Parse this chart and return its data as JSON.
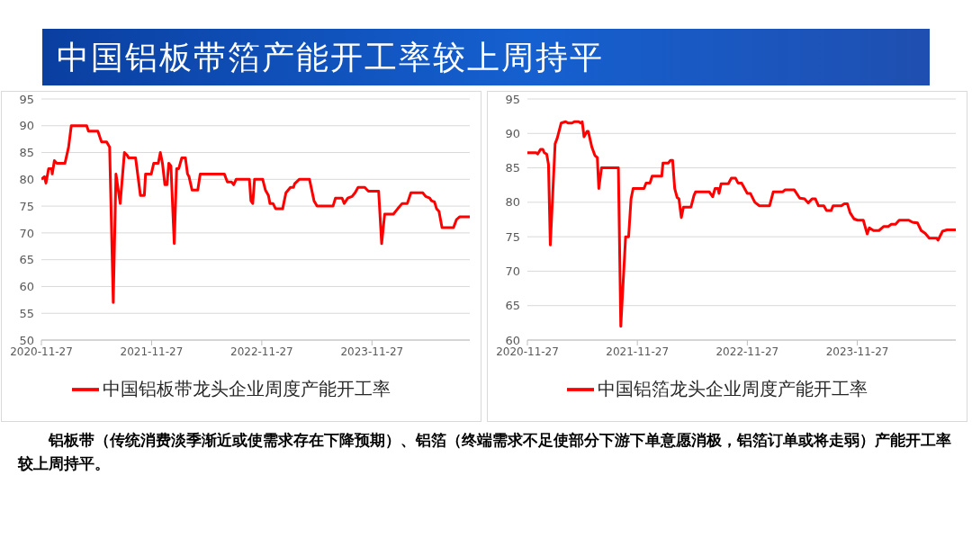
{
  "chart_data": [
    {
      "type": "line",
      "title": "中国铝板带箔产能开工率较上周持平",
      "x": [
        "2020-11-27",
        "2020-12-07",
        "2020-12-12",
        "2020-12-21",
        "2020-12-31",
        "2021-01-02",
        "2021-01-09",
        "2021-01-17",
        "2021-02-13",
        "2021-02-25",
        "2021-03-06",
        "2021-04-26",
        "2021-05-02",
        "2021-06-02",
        "2021-06-14",
        "2021-07-01",
        "2021-07-11",
        "2021-07-23",
        "2021-08-01",
        "2021-08-15",
        "2021-08-29",
        "2021-09-07",
        "2021-09-12",
        "2021-10-05",
        "2021-10-21",
        "2021-11-03",
        "2021-11-07",
        "2021-11-26",
        "2021-12-04",
        "2021-12-19",
        "2021-12-26",
        "2022-01-02",
        "2022-01-10",
        "2022-01-17",
        "2022-01-23",
        "2022-01-30",
        "2022-02-10",
        "2022-02-18",
        "2022-02-25",
        "2022-03-07",
        "2022-03-19",
        "2022-03-26",
        "2022-03-31",
        "2022-04-10",
        "2022-04-29",
        "2022-05-07",
        "2022-07-26",
        "2022-08-05",
        "2022-08-19",
        "2022-08-26",
        "2022-09-03",
        "2022-09-13",
        "2022-10-17",
        "2022-10-22",
        "2022-10-28",
        "2022-11-03",
        "2022-11-30",
        "2022-12-09",
        "2022-12-19",
        "2022-12-24",
        "2023-01-03",
        "2023-01-12",
        "2023-02-04",
        "2023-02-15",
        "2023-03-02",
        "2023-03-12",
        "2023-03-16",
        "2023-03-31",
        "2023-05-04",
        "2023-05-19",
        "2023-05-29",
        "2023-07-21",
        "2023-07-29",
        "2023-08-20",
        "2023-08-27",
        "2023-09-08",
        "2023-09-22",
        "2023-10-02",
        "2023-10-12",
        "2023-11-03",
        "2023-11-15",
        "2023-12-19",
        "2023-12-29",
        "2024-01-08",
        "2024-02-06",
        "2024-02-20",
        "2024-03-06",
        "2024-03-23",
        "2024-04-04",
        "2024-05-13",
        "2024-05-23",
        "2024-06-05",
        "2024-06-11",
        "2024-06-21",
        "2024-06-28",
        "2024-07-06",
        "2024-07-16",
        "2024-08-23",
        "2024-09-02",
        "2024-09-12",
        "2024-10-16"
      ],
      "series": [
        {
          "name": "中国铝板带龙头企业周度产能开工率",
          "color": "#ff0000",
          "values": [
            80,
            80.5,
            79.3,
            82,
            82,
            81,
            83.5,
            83,
            83,
            86,
            90,
            90,
            89,
            89,
            87,
            87,
            86,
            57,
            81,
            75.5,
            85,
            84.5,
            84,
            84,
            77,
            77,
            81,
            81,
            83,
            83,
            85,
            83,
            79,
            79,
            83,
            82.5,
            68,
            82,
            82,
            84,
            84,
            81,
            80.5,
            78,
            78,
            81,
            81,
            79.5,
            79.5,
            79,
            80,
            80,
            80,
            76,
            75.5,
            80,
            80,
            78,
            77,
            75.5,
            75.5,
            74.5,
            74.5,
            77.5,
            78.5,
            78.5,
            79.2,
            80,
            80,
            76,
            75,
            75,
            76.5,
            76.5,
            75.5,
            76.5,
            76.8,
            77.5,
            78.5,
            78.5,
            77.8,
            77.8,
            68,
            73.5,
            73.5,
            74.5,
            75.5,
            75.5,
            77.5,
            77.5,
            76.8,
            76.5,
            76,
            75.8,
            74.5,
            74,
            71,
            71,
            72.5,
            73,
            73
          ]
        }
      ],
      "xlim": [
        "2020-11-27",
        "2024-10-16"
      ],
      "xticks": [
        "2020-11-27",
        "2021-11-27",
        "2022-11-27",
        "2023-11-27"
      ],
      "ylim": [
        50,
        95
      ],
      "yticks": [
        50,
        55,
        60,
        65,
        70,
        75,
        80,
        85,
        90,
        95
      ],
      "grid": "y",
      "legend": "bottom",
      "marker": "none"
    },
    {
      "type": "line",
      "annotations": [
        "铝板带（传统消费淡季渐近或使需求存在下降预期）、铝箔（终端需求不足使部分下游下单意愿消极，铝箔订单或将走弱）产能开工率较上周持平。"
      ],
      "x": [
        "2020-11-27",
        "2020-12-26",
        "2020-12-31",
        "2021-01-10",
        "2021-01-17",
        "2021-01-22",
        "2021-01-30",
        "2021-02-05",
        "2021-02-11",
        "2021-02-20",
        "2021-02-27",
        "2021-03-06",
        "2021-03-19",
        "2021-04-03",
        "2021-04-12",
        "2021-04-24",
        "2021-05-02",
        "2021-05-16",
        "2021-05-23",
        "2021-05-28",
        "2021-06-03",
        "2021-06-13",
        "2021-06-17",
        "2021-06-29",
        "2021-07-09",
        "2021-07-17",
        "2021-07-22",
        "2021-07-31",
        "2021-09-25",
        "2021-10-03",
        "2021-10-19",
        "2021-10-29",
        "2021-11-06",
        "2021-11-13",
        "2021-12-19",
        "2021-12-26",
        "2022-01-08",
        "2022-01-15",
        "2022-02-16",
        "2022-02-20",
        "2022-03-10",
        "2022-03-17",
        "2022-03-24",
        "2022-03-31",
        "2022-04-08",
        "2022-04-14",
        "2022-04-22",
        "2022-04-29",
        "2022-05-24",
        "2022-06-03",
        "2022-06-08",
        "2022-07-24",
        "2022-08-04",
        "2022-08-12",
        "2022-08-22",
        "2022-08-25",
        "2022-09-01",
        "2022-09-25",
        "2022-10-05",
        "2022-10-19",
        "2022-10-27",
        "2022-11-08",
        "2022-11-27",
        "2022-12-07",
        "2022-12-22",
        "2023-01-06",
        "2023-02-09",
        "2023-02-21",
        "2023-03-24",
        "2023-04-01",
        "2023-05-02",
        "2023-05-20",
        "2023-06-05",
        "2023-06-17",
        "2023-06-30",
        "2023-07-11",
        "2023-07-21",
        "2023-08-08",
        "2023-08-17",
        "2023-09-01",
        "2023-09-08",
        "2023-10-05",
        "2023-10-15",
        "2023-10-25",
        "2023-11-03",
        "2023-11-16",
        "2023-11-28",
        "2023-12-17",
        "2023-12-24",
        "2023-12-30",
        "2024-01-06",
        "2024-01-20",
        "2024-02-07",
        "2024-02-23",
        "2024-03-09",
        "2024-03-19",
        "2024-04-02",
        "2024-04-14",
        "2024-05-16",
        "2024-05-28",
        "2024-06-14",
        "2024-06-26",
        "2024-07-09",
        "2024-07-23",
        "2024-08-17",
        "2024-08-21",
        "2024-09-05",
        "2024-09-20",
        "2024-10-19"
      ],
      "series": [
        {
          "name": "中国铝箔龙头企业周度产能开工率",
          "color": "#ff0000",
          "values": [
            87.2,
            87.2,
            87,
            87.7,
            87.7,
            87.2,
            87,
            85.5,
            73.8,
            82,
            88.5,
            89.3,
            91.5,
            91.7,
            91.5,
            91.5,
            91.7,
            91.7,
            91.5,
            91.7,
            89.5,
            90.3,
            90.3,
            88,
            86.8,
            86.5,
            82,
            85,
            85,
            62,
            75,
            75,
            80.5,
            82,
            82,
            82.8,
            82.8,
            83.8,
            83.8,
            85.7,
            85.7,
            86.1,
            86.1,
            82,
            80.7,
            80.5,
            77.8,
            79.3,
            79.3,
            81,
            81.5,
            81.5,
            80.8,
            82,
            82,
            81.3,
            82.7,
            82.7,
            83.5,
            83.5,
            82.8,
            82.8,
            81.3,
            81.3,
            80,
            79.5,
            79.5,
            81.5,
            81.5,
            81.8,
            81.8,
            80.6,
            80.5,
            79.9,
            80.5,
            80.5,
            79.5,
            79.5,
            78.8,
            78.8,
            79.5,
            79.5,
            79.8,
            79.8,
            78.5,
            77.6,
            77.4,
            77.4,
            76.3,
            75.4,
            76.3,
            75.9,
            75.9,
            76.5,
            76.5,
            76.8,
            76.8,
            77.4,
            77.4,
            77.1,
            77,
            75.9,
            75.5,
            74.8,
            74.8,
            74.5,
            75.8,
            76,
            76
          ]
        }
      ],
      "xlim": [
        "2020-11-27",
        "2024-10-19"
      ],
      "xticks": [
        "2020-11-27",
        "2021-11-27",
        "2022-11-27",
        "2023-11-27"
      ],
      "ylim": [
        60,
        95
      ],
      "yticks": [
        60,
        65,
        70,
        75,
        80,
        85,
        90,
        95
      ],
      "grid": "y",
      "legend": "bottom",
      "marker": "none"
    }
  ]
}
